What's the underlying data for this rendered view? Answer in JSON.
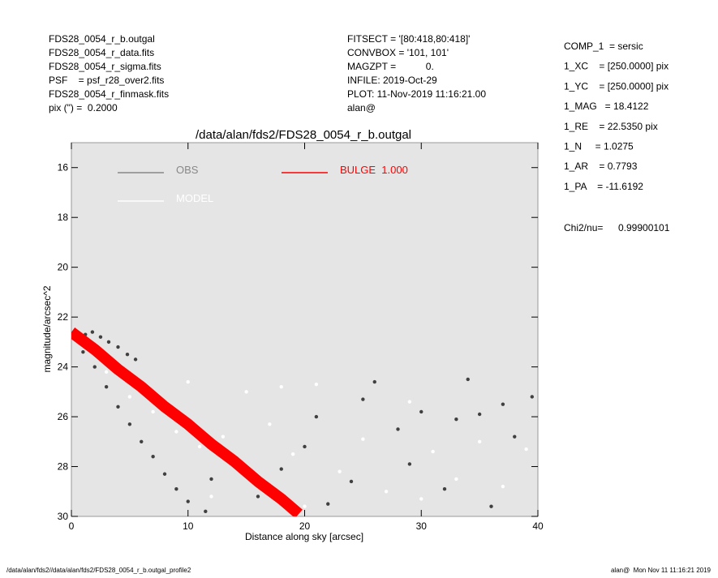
{
  "header_left": [
    "FDS28_0054_r_b.outgal",
    "FDS28_0054_r_data.fits",
    "FDS28_0054_r_sigma.fits",
    "PSF    = psf_r28_over2.fits",
    "FDS28_0054_r_finmask.fits",
    "pix (\") =  0.2000"
  ],
  "header_middle": [
    "FITSECT = '[80:418,80:418]'",
    "CONVBOX = '101, 101'",
    "MAGZPT =           0.",
    "INFILE: 2019-Oct-29",
    "PLOT: 11-Nov-2019 11:16:21.00",
    "alan@"
  ],
  "params": [
    "COMP_1  = sersic",
    "1_XC    = [250.0000] pix",
    "1_YC    = [250.0000] pix",
    "1_MAG   = 18.4122",
    "1_RE    = 22.5350 pix",
    "1_N     = 1.0275",
    "1_AR    = 0.7793",
    "1_PA    = -11.6192"
  ],
  "chi2_label": "Chi2/nu=",
  "chi2_value": "0.99900101",
  "footer_left": "/data/alan/fds2//data/alan/fds2/FDS28_0054_r_b.outgal_profile2",
  "footer_right": "alan@  Mon Nov 11 11:16:21 2019",
  "chart_data": {
    "type": "scatter",
    "title": "/data/alan/fds2/FDS28_0054_r_b.outgal",
    "x_label": "Distance along sky [arcsec]",
    "y_label": "magnitude/arcsec^2",
    "xlim": [
      0,
      40
    ],
    "xticks": [
      0,
      10,
      20,
      30,
      40
    ],
    "ylim": [
      30,
      15
    ],
    "yticks": [
      16,
      18,
      20,
      22,
      24,
      26,
      28,
      30
    ],
    "y_inverted": true,
    "series": [
      {
        "name": "OBS",
        "color": "#404040",
        "style": "points",
        "x": [
          0.5,
          1.2,
          1.8,
          2.5,
          3.2,
          4.0,
          4.8,
          5.5,
          1.0,
          2.0,
          3.0,
          4.0,
          5.0,
          6.0,
          7.0,
          8.0,
          9.0,
          10.0,
          11.5,
          12,
          14,
          16,
          18,
          20,
          22,
          24,
          26,
          28,
          30,
          32,
          34,
          36,
          38,
          39.5,
          25,
          33,
          35,
          37,
          29,
          21
        ],
        "values": [
          22.6,
          22.7,
          22.6,
          22.8,
          23.0,
          23.2,
          23.5,
          23.7,
          23.4,
          24.0,
          24.8,
          25.6,
          26.3,
          27.0,
          27.6,
          28.3,
          28.9,
          29.4,
          29.8,
          28.5,
          27.8,
          29.2,
          28.1,
          27.2,
          29.5,
          28.6,
          24.6,
          26.5,
          25.8,
          28.9,
          24.5,
          29.6,
          26.8,
          25.2,
          25.3,
          26.1,
          25.9,
          25.5,
          27.9,
          26.0
        ]
      },
      {
        "name": "MODEL",
        "color": "#ffffff",
        "style": "points",
        "x": [
          3,
          5,
          7,
          9,
          11,
          13,
          15,
          17,
          19,
          21,
          23,
          25,
          27,
          29,
          31,
          33,
          35,
          37,
          39,
          12,
          16,
          20,
          30,
          10,
          18
        ],
        "values": [
          24.2,
          25.2,
          25.8,
          26.6,
          27.2,
          26.8,
          25.0,
          26.3,
          27.5,
          24.7,
          28.2,
          26.9,
          29.0,
          25.4,
          27.4,
          28.5,
          27.0,
          28.8,
          27.3,
          29.2,
          28.6,
          29.6,
          29.3,
          24.6,
          24.8
        ]
      },
      {
        "name": "BULGE  1.000",
        "color": "#ff0000",
        "style": "band",
        "x": [
          0,
          2,
          4,
          6,
          8,
          10,
          12,
          14,
          16,
          18,
          19.5
        ],
        "values": [
          22.6,
          23.3,
          24.1,
          24.8,
          25.6,
          26.3,
          27.1,
          27.8,
          28.6,
          29.3,
          29.9
        ]
      }
    ]
  }
}
